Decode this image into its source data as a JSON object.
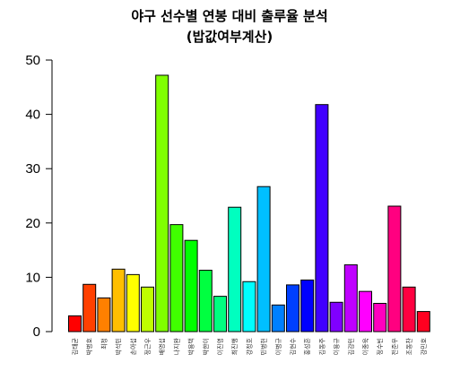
{
  "chart_data": {
    "type": "bar",
    "title": "야구 선수별 연봉 대비 출루율 분석",
    "subtitle": "(밥값여부계산)",
    "xlabel": "",
    "ylabel": "",
    "ylim": [
      0,
      50
    ],
    "yticks": [
      0,
      10,
      20,
      30,
      40,
      50
    ],
    "grid": false,
    "legend": "none",
    "categories": [
      "김태균",
      "박병호",
      "최정",
      "박석민",
      "손아섭",
      "정근우",
      "배영섭",
      "나지완",
      "박용택",
      "박한이",
      "이진영",
      "최진행",
      "강정호",
      "민병헌",
      "이병규",
      "김현수",
      "홍성흔",
      "김동주",
      "이용규",
      "김강민",
      "이종욱",
      "정수빈",
      "전준우",
      "조동찬",
      "강민호"
    ],
    "values": [
      2.9,
      8.7,
      6.2,
      11.5,
      10.5,
      8.2,
      47.2,
      19.7,
      16.8,
      11.3,
      6.5,
      22.9,
      9.2,
      26.7,
      4.9,
      8.6,
      9.5,
      41.8,
      5.4,
      12.3,
      7.4,
      5.2,
      23.1,
      8.2,
      3.7
    ],
    "colors": [
      "#FF0000",
      "#FF4000",
      "#FF8000",
      "#FFBF00",
      "#FFFF00",
      "#BFFF00",
      "#80FF00",
      "#40FF00",
      "#00FF00",
      "#00FF40",
      "#00FF80",
      "#00FFBF",
      "#00FFFF",
      "#00BFFF",
      "#0080FF",
      "#0040FF",
      "#0000FF",
      "#4000FF",
      "#8000FF",
      "#BF00FF",
      "#FF00FF",
      "#FF00BF",
      "#FF0080",
      "#FF0040",
      "#FF0020"
    ]
  }
}
